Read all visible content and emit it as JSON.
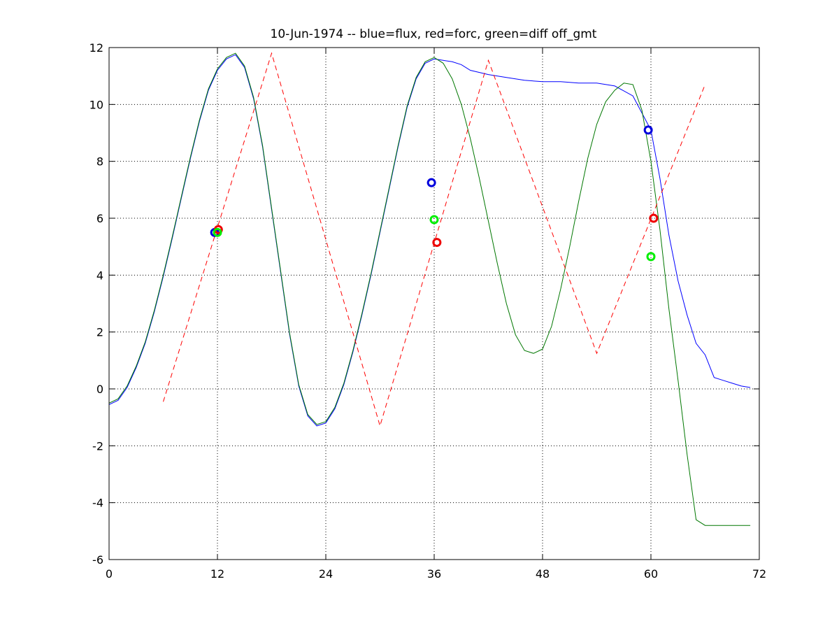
{
  "chart_data": {
    "type": "line",
    "title": "10-Jun-1974 -- blue=flux, red=forc, green=diff off_gmt",
    "xlabel": "",
    "ylabel": "",
    "xlim": [
      0,
      72
    ],
    "ylim": [
      -6,
      12
    ],
    "xticks": [
      0,
      12,
      24,
      36,
      48,
      60,
      72
    ],
    "yticks": [
      -6,
      -4,
      -2,
      0,
      2,
      4,
      6,
      8,
      10,
      12
    ],
    "grid": true,
    "colors": {
      "flux": "#0000ff",
      "forc": "#ff0000",
      "diff": "#007700",
      "flux_marker": "#0000dd",
      "forc_marker": "#ee0000",
      "diff_marker": "#00ee00"
    },
    "series": [
      {
        "key": "flux",
        "style": "solid",
        "x": [
          0,
          1,
          2,
          3,
          4,
          5,
          6,
          7,
          8,
          9,
          10,
          11,
          12,
          13,
          14,
          15,
          16,
          17,
          18,
          19,
          20,
          21,
          22,
          23,
          24,
          25,
          26,
          27,
          28,
          29,
          30,
          31,
          32,
          33,
          34,
          35,
          36,
          37,
          38,
          39,
          40,
          42,
          44,
          46,
          48,
          50,
          52,
          54,
          56,
          58,
          60,
          61,
          62,
          63,
          64,
          65,
          66,
          67,
          68,
          69,
          70,
          71
        ],
        "y": [
          -0.55,
          -0.4,
          0.05,
          0.75,
          1.6,
          2.7,
          3.95,
          5.3,
          6.7,
          8.1,
          9.4,
          10.5,
          11.2,
          11.6,
          11.75,
          11.3,
          10.2,
          8.5,
          6.3,
          4.1,
          1.9,
          0.1,
          -0.95,
          -1.3,
          -1.2,
          -0.7,
          0.15,
          1.3,
          2.6,
          4.0,
          5.5,
          7.0,
          8.5,
          9.9,
          10.9,
          11.45,
          11.6,
          11.55,
          11.5,
          11.4,
          11.2,
          11.05,
          10.95,
          10.85,
          10.8,
          10.8,
          10.75,
          10.75,
          10.65,
          10.3,
          9.1,
          7.4,
          5.4,
          3.8,
          2.6,
          1.6,
          1.2,
          0.4,
          0.3,
          0.2,
          0.1,
          0.05
        ]
      },
      {
        "key": "diff",
        "style": "solid",
        "x": [
          0,
          1,
          2,
          3,
          4,
          5,
          6,
          7,
          8,
          9,
          10,
          11,
          12,
          13,
          14,
          15,
          16,
          17,
          18,
          19,
          20,
          21,
          22,
          23,
          24,
          25,
          26,
          27,
          28,
          29,
          30,
          31,
          32,
          33,
          34,
          35,
          36,
          37,
          38,
          39,
          40,
          41,
          42,
          43,
          44,
          45,
          46,
          47,
          48,
          49,
          50,
          51,
          52,
          53,
          54,
          55,
          56,
          57,
          58,
          59,
          60,
          61,
          62,
          63,
          64,
          65,
          66,
          67,
          68,
          69,
          70,
          71
        ],
        "y": [
          -0.5,
          -0.35,
          0.1,
          0.8,
          1.65,
          2.75,
          4.0,
          5.35,
          6.75,
          8.15,
          9.45,
          10.55,
          11.25,
          11.65,
          11.8,
          11.35,
          10.25,
          8.55,
          6.35,
          4.15,
          1.95,
          0.15,
          -0.9,
          -1.25,
          -1.15,
          -0.65,
          0.2,
          1.35,
          2.65,
          4.05,
          5.55,
          7.05,
          8.55,
          9.95,
          10.95,
          11.5,
          11.65,
          11.45,
          10.9,
          10.0,
          8.8,
          7.4,
          5.9,
          4.4,
          3.0,
          1.9,
          1.35,
          1.25,
          1.4,
          2.2,
          3.5,
          5.0,
          6.6,
          8.1,
          9.3,
          10.1,
          10.5,
          10.75,
          10.7,
          9.8,
          8.0,
          5.6,
          2.8,
          0.3,
          -2.3,
          -4.6,
          -4.8,
          -4.8,
          -4.8,
          -4.8,
          -4.8,
          -4.8
        ]
      },
      {
        "key": "forc",
        "style": "dashed",
        "x": [
          6,
          18,
          30,
          42,
          54,
          66
        ],
        "y": [
          -0.45,
          11.8,
          -1.3,
          11.55,
          1.25,
          10.7
        ]
      }
    ],
    "markers": [
      {
        "series": "flux",
        "x": 11.7,
        "y": 5.5
      },
      {
        "series": "forc",
        "x": 12.1,
        "y": 5.6
      },
      {
        "series": "diff",
        "x": 12.0,
        "y": 5.5
      },
      {
        "series": "flux",
        "x": 35.7,
        "y": 7.25
      },
      {
        "series": "diff",
        "x": 36.0,
        "y": 5.95
      },
      {
        "series": "forc",
        "x": 36.3,
        "y": 5.15
      },
      {
        "series": "flux",
        "x": 59.7,
        "y": 9.1
      },
      {
        "series": "forc",
        "x": 60.3,
        "y": 6.0
      },
      {
        "series": "diff",
        "x": 60.0,
        "y": 4.65
      }
    ]
  }
}
